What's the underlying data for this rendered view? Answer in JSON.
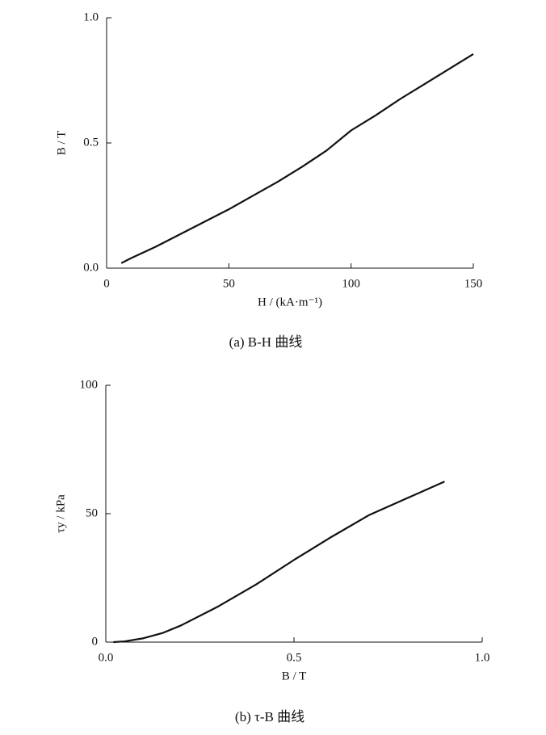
{
  "chart_data": [
    {
      "type": "line",
      "x_label": "H / (kA·m⁻¹)",
      "y_label": "B / T",
      "caption": "(a)  B-H 曲线",
      "xlim": [
        0,
        150
      ],
      "xticks": [
        0,
        50,
        100,
        150
      ],
      "ylim": [
        0,
        1
      ],
      "yticks": [
        {
          "value": 0,
          "label": "0.0"
        },
        {
          "value": 0.5,
          "label": "0.5"
        },
        {
          "value": 1,
          "label": "1.0"
        }
      ],
      "series": [
        {
          "color": "#111111",
          "x": [
            6,
            10,
            20,
            30,
            40,
            50,
            60,
            70,
            80,
            90,
            100,
            110,
            120,
            130,
            140,
            150
          ],
          "values": [
            0.02,
            0.04,
            0.085,
            0.135,
            0.185,
            0.235,
            0.29,
            0.345,
            0.405,
            0.47,
            0.55,
            0.61,
            0.675,
            0.735,
            0.795,
            0.855
          ]
        }
      ]
    },
    {
      "type": "line",
      "x_label": "B / T",
      "y_label": "τy / kPa",
      "caption": "(b)  τ-B 曲线",
      "xlim": [
        0,
        1
      ],
      "xticks": [
        {
          "value": 0,
          "label": "0.0"
        },
        {
          "value": 0.5,
          "label": "0.5"
        },
        {
          "value": 1,
          "label": "1.0"
        }
      ],
      "ylim": [
        0,
        100
      ],
      "yticks": [
        0,
        50,
        100
      ],
      "series": [
        {
          "color": "#111111",
          "x": [
            0.02,
            0.05,
            0.1,
            0.15,
            0.2,
            0.3,
            0.4,
            0.5,
            0.6,
            0.7,
            0.8,
            0.9
          ],
          "values": [
            0,
            0.3,
            1.5,
            3.5,
            6.5,
            14,
            22.5,
            32,
            41,
            49.5,
            56,
            62.5
          ]
        }
      ]
    }
  ]
}
